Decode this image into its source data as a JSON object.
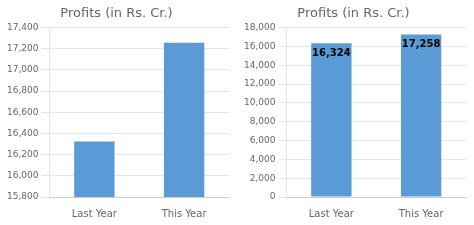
{
  "chart_data": [
    {
      "type": "bar",
      "title": "Profits (in Rs. Cr.)",
      "categories": [
        "Last Year",
        "This Year"
      ],
      "values": [
        16324,
        17258
      ],
      "color": "#5B9BD5",
      "ylim": [
        15800,
        17400
      ],
      "yticks": [
        {
          "value": 15800,
          "label": "15,800"
        },
        {
          "value": 16000,
          "label": "16,000"
        },
        {
          "value": 16200,
          "label": "16,200"
        },
        {
          "value": 16400,
          "label": "16,400"
        },
        {
          "value": 16600,
          "label": "16,600"
        },
        {
          "value": 16800,
          "label": "16,800"
        },
        {
          "value": 17000,
          "label": "17,000"
        },
        {
          "value": 17200,
          "label": "17,200"
        },
        {
          "value": 17400,
          "label": "17,400"
        }
      ],
      "grid": true
    },
    {
      "type": "bar",
      "title": "Profits (in Rs. Cr.)",
      "categories": [
        "Last Year",
        "This Year"
      ],
      "values": [
        16324,
        17258
      ],
      "color": "#5B9BD5",
      "value_labels": [
        "16,324",
        "17,258"
      ],
      "data_labels": true,
      "ylim": [
        0,
        18000
      ],
      "yticks": [
        0,
        {
          "value": 2000,
          "label": "2,000"
        },
        {
          "value": 4000,
          "label": "4,000"
        },
        {
          "value": 6000,
          "label": "6,000"
        },
        {
          "value": 8000,
          "label": "8,000"
        },
        {
          "value": 10000,
          "label": "10,000"
        },
        {
          "value": 12000,
          "label": "12,000"
        },
        {
          "value": 14000,
          "label": "14,000"
        },
        {
          "value": 16000,
          "label": "16,000"
        },
        {
          "value": 18000,
          "label": "18,000"
        }
      ],
      "grid": true
    }
  ]
}
